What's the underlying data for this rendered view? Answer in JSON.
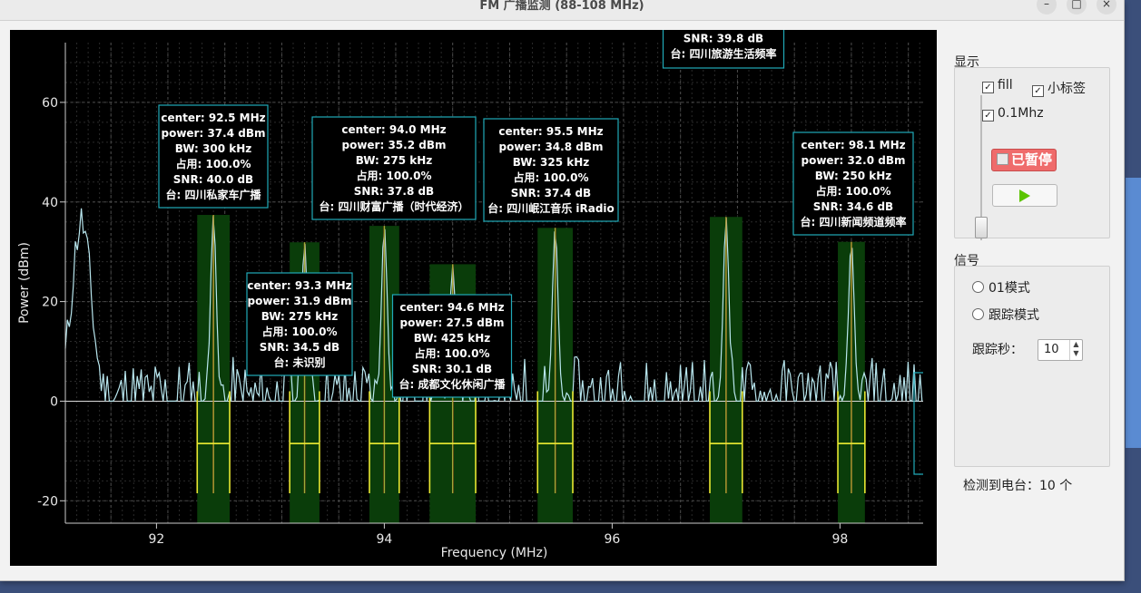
{
  "window": {
    "title": "FM 广播监测 (88-108 MHz)",
    "controls": {
      "minimize": "–",
      "maximize": "□",
      "close": "×"
    }
  },
  "plot": {
    "ylabel": "Power (dBm)",
    "xlabel": "Frequency (MHz)",
    "x_ticks": [
      "92",
      "94",
      "96",
      "98"
    ],
    "y_ticks": [
      "60",
      "40",
      "20",
      "0",
      "-20"
    ],
    "stations": [
      {
        "center_mhz": 92.5,
        "bw_khz": 300,
        "power_dbm": 37.4,
        "lines": [
          "center: 92.5 MHz",
          "power: 37.4 dBm",
          "BW: 300 kHz",
          "占用: 100.0%",
          "SNR: 40.0 dB",
          "台: 四川私家车广播"
        ]
      },
      {
        "center_mhz": 93.3,
        "bw_khz": 275,
        "power_dbm": 31.9,
        "lines": [
          "center: 93.3 MHz",
          "power: 31.9 dBm",
          "BW: 275 kHz",
          "占用: 100.0%",
          "SNR: 34.5 dB",
          "台: 未识别"
        ]
      },
      {
        "center_mhz": 94.0,
        "bw_khz": 275,
        "power_dbm": 35.2,
        "lines": [
          "center: 94.0 MHz",
          "power: 35.2 dBm",
          "BW: 275 kHz",
          "占用: 100.0%",
          "SNR: 37.8 dB",
          "台: 四川财富广播（时代经济）"
        ]
      },
      {
        "center_mhz": 94.6,
        "bw_khz": 425,
        "power_dbm": 27.5,
        "lines": [
          "center: 94.6 MHz",
          "power: 27.5 dBm",
          "BW: 425 kHz",
          "占用: 100.0%",
          "SNR: 30.1 dB",
          "台: 成都文化休闲广播"
        ]
      },
      {
        "center_mhz": 95.5,
        "bw_khz": 325,
        "power_dbm": 34.8,
        "lines": [
          "center: 95.5 MHz",
          "power: 34.8 dBm",
          "BW: 325 kHz",
          "占用: 100.0%",
          "SNR: 37.4 dB",
          "台: 四川岷江音乐 iRadio"
        ]
      },
      {
        "center_mhz": 97.0,
        "bw_khz": 300,
        "power_dbm": 37.0,
        "lines": [
          "SNR: 39.8 dB",
          "台: 四川旅游生活频率"
        ]
      },
      {
        "center_mhz": 98.1,
        "bw_khz": 250,
        "power_dbm": 32.0,
        "lines": [
          "center: 98.1 MHz",
          "power: 32.0 dBm",
          "BW: 250 kHz",
          "占用: 100.0%",
          "SNR: 34.6 dB",
          "台: 四川新闻频道频率"
        ]
      }
    ]
  },
  "display_group": {
    "title": "显示",
    "fill_label": "fill",
    "fill_checked": "✓",
    "labels_label": "小标签",
    "labels_checked": "✓",
    "mhz_label": "0.1Mhz",
    "mhz_checked": "✓",
    "pause_label": "已暂停"
  },
  "signal_group": {
    "title": "信号",
    "mode01_label": "01模式",
    "track_label": "跟踪模式",
    "track_seconds_label": "跟踪秒：",
    "track_seconds_value": "10",
    "spin_up": "▲",
    "spin_down": "▼"
  },
  "status": {
    "detected_text": "检测到电台：10 个"
  }
}
